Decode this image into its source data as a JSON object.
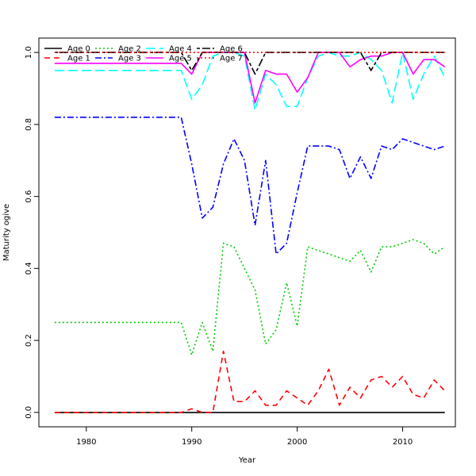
{
  "chart_data": {
    "type": "line",
    "title": "",
    "xlabel": "Year",
    "ylabel": "Maturity ogive",
    "xlim": [
      1975.5,
      2015
    ],
    "ylim": [
      -0.04,
      1.04
    ],
    "xticks": [
      1980,
      1990,
      2000,
      2010
    ],
    "yticks": [
      0.0,
      0.2,
      0.4,
      0.6,
      0.8,
      1.0
    ],
    "xtick_labels": [
      "1980",
      "1990",
      "2000",
      "2010"
    ],
    "ytick_labels": [
      "0.0",
      "0.2",
      "0.4",
      "0.6",
      "0.8",
      "1.0"
    ],
    "grid": false,
    "legend_position": "top-left",
    "x": [
      1977,
      1978,
      1979,
      1980,
      1981,
      1982,
      1983,
      1984,
      1985,
      1986,
      1987,
      1988,
      1989,
      1990,
      1991,
      1992,
      1993,
      1994,
      1995,
      1996,
      1997,
      1998,
      1999,
      2000,
      2001,
      2002,
      2003,
      2004,
      2005,
      2006,
      2007,
      2008,
      2009,
      2010,
      2011,
      2012,
      2013,
      2014
    ],
    "series": [
      {
        "name": "Age 0",
        "color": "#000000",
        "dash": "solid",
        "values": [
          0,
          0,
          0,
          0,
          0,
          0,
          0,
          0,
          0,
          0,
          0,
          0,
          0,
          0,
          0,
          0,
          0,
          0,
          0,
          0,
          0,
          0,
          0,
          0,
          0,
          0,
          0,
          0,
          0,
          0,
          0,
          0,
          0,
          0,
          0,
          0,
          0,
          0
        ]
      },
      {
        "name": "Age 1",
        "color": "#ff0000",
        "dash": "dashed",
        "values": [
          0,
          0,
          0,
          0,
          0,
          0,
          0,
          0,
          0,
          0,
          0,
          0,
          0,
          0.01,
          0,
          0,
          0.17,
          0.03,
          0.03,
          0.06,
          0.02,
          0.02,
          0.06,
          0.04,
          0.02,
          0.06,
          0.12,
          0.02,
          0.07,
          0.04,
          0.09,
          0.1,
          0.07,
          0.1,
          0.05,
          0.04,
          0.09,
          0.06
        ]
      },
      {
        "name": "Age 2",
        "color": "#00cd00",
        "dash": "dotted",
        "values": [
          0.25,
          0.25,
          0.25,
          0.25,
          0.25,
          0.25,
          0.25,
          0.25,
          0.25,
          0.25,
          0.25,
          0.25,
          0.25,
          0.16,
          0.25,
          0.17,
          0.47,
          0.46,
          0.4,
          0.34,
          0.19,
          0.23,
          0.36,
          0.24,
          0.46,
          0.45,
          0.44,
          0.43,
          0.42,
          0.45,
          0.39,
          0.46,
          0.46,
          0.47,
          0.48,
          0.47,
          0.44,
          0.46
        ]
      },
      {
        "name": "Age 3",
        "color": "#0000ff",
        "dash": "dashdot",
        "values": [
          0.82,
          0.82,
          0.82,
          0.82,
          0.82,
          0.82,
          0.82,
          0.82,
          0.82,
          0.82,
          0.82,
          0.82,
          0.82,
          0.69,
          0.54,
          0.57,
          0.69,
          0.76,
          0.7,
          0.52,
          0.7,
          0.44,
          0.47,
          0.61,
          0.74,
          0.74,
          0.74,
          0.73,
          0.65,
          0.71,
          0.65,
          0.74,
          0.73,
          0.76,
          0.75,
          0.74,
          0.73,
          0.74
        ]
      },
      {
        "name": "Age 4",
        "color": "#00ffff",
        "dash": "longdash",
        "values": [
          0.95,
          0.95,
          0.95,
          0.95,
          0.95,
          0.95,
          0.95,
          0.95,
          0.95,
          0.95,
          0.95,
          0.95,
          0.95,
          0.87,
          0.91,
          0.99,
          1.0,
          1.0,
          0.99,
          0.84,
          0.94,
          0.91,
          0.85,
          0.85,
          0.93,
          0.99,
          1.0,
          0.99,
          0.99,
          1.0,
          0.98,
          0.95,
          0.86,
          1.0,
          0.87,
          0.94,
          0.99,
          0.93
        ]
      },
      {
        "name": "Age 5",
        "color": "#ff00ff",
        "dash": "solid",
        "values": [
          0.97,
          0.97,
          0.97,
          0.97,
          0.97,
          0.97,
          0.97,
          0.97,
          0.97,
          0.97,
          0.97,
          0.97,
          0.97,
          0.94,
          1.0,
          1.0,
          1.0,
          1.0,
          1.0,
          0.86,
          0.95,
          0.94,
          0.94,
          0.89,
          0.93,
          1.0,
          1.0,
          1.0,
          0.96,
          0.98,
          0.99,
          0.99,
          1.0,
          1.0,
          0.94,
          0.98,
          0.98,
          0.96
        ]
      },
      {
        "name": "Age 6",
        "color": "#000000",
        "dash": "twodash",
        "values": [
          1.0,
          1.0,
          1.0,
          1.0,
          1.0,
          1.0,
          1.0,
          1.0,
          1.0,
          1.0,
          1.0,
          1.0,
          1.0,
          0.95,
          1.0,
          1.0,
          1.0,
          1.0,
          1.0,
          0.94,
          1.0,
          1.0,
          1.0,
          1.0,
          1.0,
          1.0,
          1.0,
          1.0,
          1.0,
          1.0,
          0.95,
          1.0,
          1.0,
          1.0,
          1.0,
          1.0,
          1.0,
          1.0
        ]
      },
      {
        "name": "Age 7",
        "color": "#ff0000",
        "dash": "dotted",
        "values": [
          1.0,
          1.0,
          1.0,
          1.0,
          1.0,
          1.0,
          1.0,
          1.0,
          1.0,
          1.0,
          1.0,
          1.0,
          1.0,
          1.0,
          1.0,
          1.0,
          1.0,
          1.0,
          1.0,
          1.0,
          1.0,
          1.0,
          1.0,
          1.0,
          1.0,
          1.0,
          1.0,
          1.0,
          1.0,
          1.0,
          1.0,
          1.0,
          1.0,
          1.0,
          1.0,
          1.0,
          1.0,
          1.0
        ]
      }
    ]
  }
}
